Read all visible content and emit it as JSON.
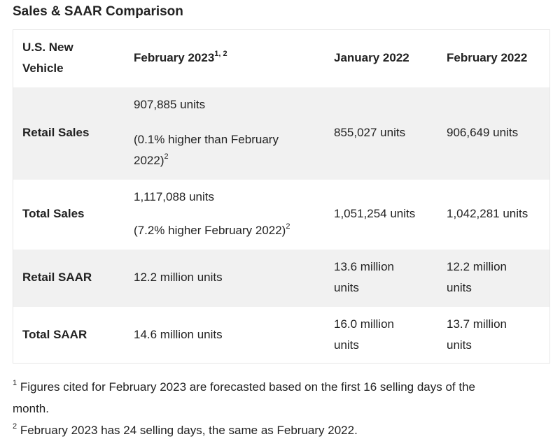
{
  "title": "Sales & SAAR Comparison",
  "table": {
    "header": {
      "col1_line1": "U.S. New",
      "col1_line2": "Vehicle",
      "col2": "February 2023",
      "col2_sup": "1, 2",
      "col3": "January 2022",
      "col4": "February 2022"
    },
    "rows": [
      {
        "label": "Retail Sales",
        "feb2023_value": "907,885 units",
        "feb2023_note_line1": "(0.1% higher than February",
        "feb2023_note_line2": "2022)",
        "feb2023_note_sup": "2",
        "jan2022": "855,027 units",
        "feb2022": "906,649 units"
      },
      {
        "label": "Total Sales",
        "feb2023_value": "1,117,088 units",
        "feb2023_note": "(7.2% higher February 2022)",
        "feb2023_note_sup": "2",
        "jan2022": "1,051,254 units",
        "feb2022": "1,042,281 units"
      },
      {
        "label": "Retail SAAR",
        "feb2023_value": "12.2 million units",
        "jan2022_line1": "13.6 million",
        "jan2022_line2": "units",
        "feb2022_line1": "12.2 million",
        "feb2022_line2": "units"
      },
      {
        "label": "Total SAAR",
        "feb2023_value": "14.6 million units",
        "jan2022_line1": "16.0 million",
        "jan2022_line2": "units",
        "feb2022_line1": "13.7 million",
        "feb2022_line2": "units"
      }
    ]
  },
  "footnotes": [
    {
      "mark": "1",
      "line1": " Figures cited for February 2023 are forecasted based on the first 16 selling days of the",
      "line2": "month."
    },
    {
      "mark": "2",
      "text": " February 2023 has 24 selling days, the same as February 2022."
    }
  ]
}
